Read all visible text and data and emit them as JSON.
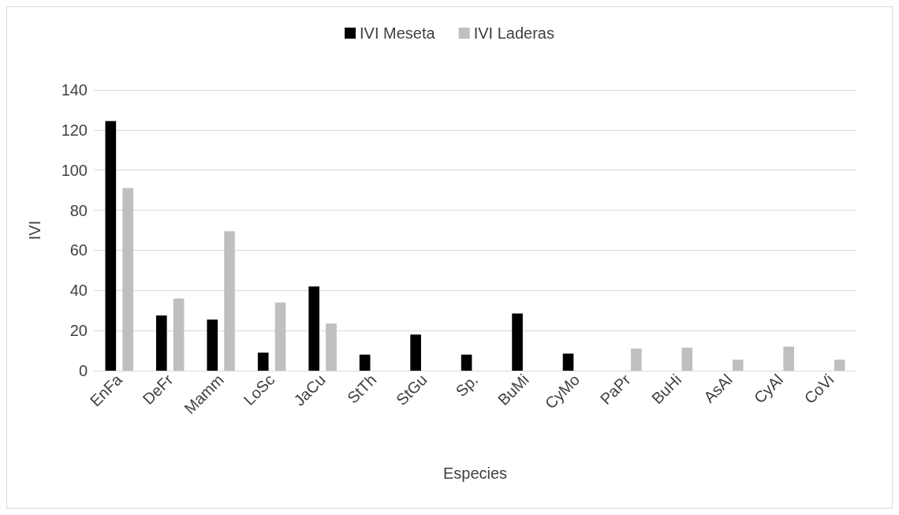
{
  "chart_data": {
    "type": "bar",
    "xlabel": "Especies",
    "ylabel": "IVI",
    "categories": [
      "EnFa",
      "DeFr",
      "Mamm",
      "LoSc",
      "JaCu",
      "StTh",
      "StGu",
      "Sp.",
      "BuMi",
      "CyMo",
      "PaPr",
      "BuHi",
      "AsAl",
      "CyAl",
      "CoVi"
    ],
    "series": [
      {
        "name": "IVI Meseta",
        "color": "#000000",
        "values": [
          124.5,
          27.5,
          25.5,
          9,
          42,
          8,
          18,
          8,
          28.5,
          8.5,
          null,
          null,
          null,
          null,
          null
        ]
      },
      {
        "name": "IVI Laderas",
        "color": "#bfbfbf",
        "values": [
          91,
          36,
          69.5,
          34,
          23.5,
          null,
          null,
          null,
          null,
          null,
          11,
          11.5,
          5.5,
          12,
          5.5
        ]
      }
    ],
    "ylim": [
      0,
      140
    ],
    "yticks": [
      0,
      20,
      40,
      60,
      80,
      100,
      120,
      140
    ],
    "grid": "y",
    "legend": "top"
  }
}
